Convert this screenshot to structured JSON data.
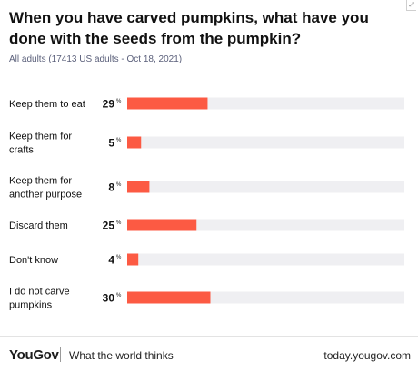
{
  "header": {
    "title": "When you have carved pumpkins, what have you done with the seeds from the pumpkin?",
    "subtitle": "All adults (17413 US adults - Oct 18, 2021)"
  },
  "footer": {
    "logo": "YouGov",
    "tagline": "What the world thinks",
    "site": "today.yougov.com"
  },
  "colors": {
    "bar": "#fc5a43",
    "track": "#efeff2",
    "text": "#111111"
  },
  "chart_data": {
    "type": "bar",
    "orientation": "horizontal",
    "unit": "%",
    "categories": [
      [
        "Keep them to eat"
      ],
      [
        "Keep them for",
        "crafts"
      ],
      [
        "Keep them for",
        "another purpose"
      ],
      [
        "Discard them"
      ],
      [
        "Don't know"
      ],
      [
        "I do not carve",
        "pumpkins"
      ]
    ],
    "values": [
      29,
      5,
      8,
      25,
      4,
      30
    ],
    "xlim": [
      0,
      100
    ],
    "grid": false,
    "legend": "none"
  }
}
